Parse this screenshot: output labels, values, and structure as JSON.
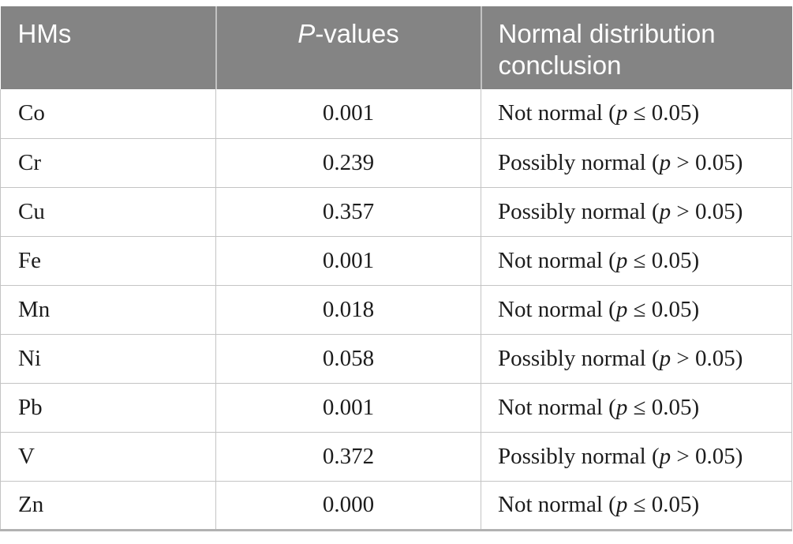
{
  "header": {
    "col_hms": "HMs",
    "col_p_italic": "P",
    "col_p_rest": "-values",
    "col_conclusion": "Normal distribution conclusion"
  },
  "shared": {
    "p_symbol": "p"
  },
  "rows": [
    {
      "hm": "Co",
      "p_value": "0.001",
      "conclusion_pre": "Not normal (",
      "conclusion_post": " ≤ 0.05)"
    },
    {
      "hm": "Cr",
      "p_value": "0.239",
      "conclusion_pre": "Possibly normal (",
      "conclusion_post": " > 0.05)"
    },
    {
      "hm": "Cu",
      "p_value": "0.357",
      "conclusion_pre": "Possibly normal (",
      "conclusion_post": " > 0.05)"
    },
    {
      "hm": "Fe",
      "p_value": "0.001",
      "conclusion_pre": "Not normal (",
      "conclusion_post": " ≤ 0.05)"
    },
    {
      "hm": "Mn",
      "p_value": "0.018",
      "conclusion_pre": "Not normal (",
      "conclusion_post": " ≤ 0.05)"
    },
    {
      "hm": "Ni",
      "p_value": "0.058",
      "conclusion_pre": "Possibly normal (",
      "conclusion_post": " > 0.05)"
    },
    {
      "hm": "Pb",
      "p_value": "0.001",
      "conclusion_pre": "Not normal (",
      "conclusion_post": " ≤ 0.05)"
    },
    {
      "hm": "V",
      "p_value": "0.372",
      "conclusion_pre": "Possibly normal (",
      "conclusion_post": " > 0.05)"
    },
    {
      "hm": "Zn",
      "p_value": "0.000",
      "conclusion_pre": "Not normal (",
      "conclusion_post": " ≤ 0.05)"
    }
  ],
  "colors": {
    "header_bg": "#848484",
    "header_text": "#ffffff",
    "header_divider": "#c2c2c2",
    "grid_line": "#c4c4c4",
    "bottom_rule": "#b2b2b2",
    "body_text": "#1c1c1c",
    "page_bg": "#ffffff"
  }
}
